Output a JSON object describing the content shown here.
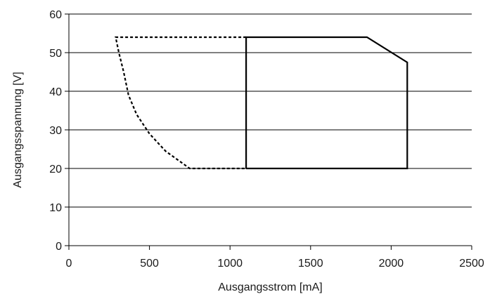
{
  "chart_data": {
    "type": "line",
    "title": "",
    "xlabel": "Ausgangsstrom [mA]",
    "ylabel": "Ausgangsspannung [V]",
    "xlim": [
      0,
      2500
    ],
    "ylim": [
      0,
      60
    ],
    "x_ticks": [
      0,
      500,
      1000,
      1500,
      2000,
      2500
    ],
    "y_ticks": [
      0,
      10,
      20,
      30,
      40,
      50,
      60
    ],
    "x_tick_labels": [
      "0",
      "500",
      "1000",
      "1500",
      "2000",
      "2500"
    ],
    "y_tick_labels": [
      "0",
      "10",
      "20",
      "30",
      "40",
      "50",
      "60"
    ],
    "grid": "horizontal",
    "legend": "none",
    "series": [
      {
        "style": "dashed",
        "color": "#000000",
        "points": [
          [
            1100,
            54
          ],
          [
            290,
            54
          ],
          [
            310,
            50
          ],
          [
            340,
            45
          ],
          [
            370,
            39
          ],
          [
            420,
            34
          ],
          [
            500,
            29
          ],
          [
            600,
            24.5
          ],
          [
            750,
            20
          ],
          [
            1100,
            20
          ]
        ]
      },
      {
        "style": "solid",
        "color": "#000000",
        "points": [
          [
            1100,
            20
          ],
          [
            1100,
            54
          ],
          [
            1850,
            54
          ],
          [
            2100,
            47.5
          ],
          [
            2100,
            20
          ],
          [
            1100,
            20
          ]
        ]
      }
    ]
  }
}
